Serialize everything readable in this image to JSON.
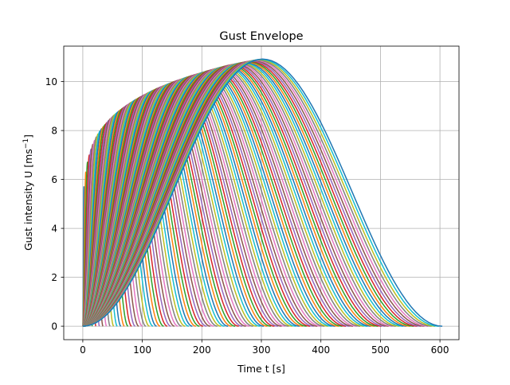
{
  "chart_data": {
    "type": "line",
    "title": "Gust Envelope",
    "xlabel": "Time t [s]",
    "ylabel_main": "Gust intensity U [ms",
    "ylabel_sup": "−1",
    "ylabel_end": "]",
    "xlim": [
      -32,
      632
    ],
    "ylim": [
      -0.55,
      11.45
    ],
    "xticks": [
      0,
      100,
      200,
      300,
      400,
      500,
      600
    ],
    "yticks": [
      0,
      2,
      4,
      6,
      8,
      10
    ],
    "grid": true,
    "legend": "none",
    "family": {
      "description_of_curves": "1-cosine gust pulses U(t) = 0.5*Um*(1 - cos(2*pi*t/T)) for gust periods T from 4 s to 604 s",
      "period_min": 4,
      "period_max": 604,
      "period_step": 6,
      "peak_envelope": [
        {
          "half_period": 2,
          "peak": 5.7
        },
        {
          "half_period": 5,
          "peak": 6.3
        },
        {
          "half_period": 10,
          "peak": 6.9
        },
        {
          "half_period": 20,
          "peak": 7.6
        },
        {
          "half_period": 40,
          "peak": 8.3
        },
        {
          "half_period": 70,
          "peak": 8.95
        },
        {
          "half_period": 100,
          "peak": 9.4
        },
        {
          "half_period": 150,
          "peak": 9.95
        },
        {
          "half_period": 200,
          "peak": 10.35
        },
        {
          "half_period": 250,
          "peak": 10.68
        },
        {
          "half_period": 302,
          "peak": 10.92
        }
      ]
    },
    "colors": [
      "#1f77b4",
      "#ff7f0e",
      "#2ca02c",
      "#d62728",
      "#9467bd",
      "#8c564b",
      "#e377c2",
      "#7f7f7f",
      "#bcbd22",
      "#17becf"
    ]
  }
}
